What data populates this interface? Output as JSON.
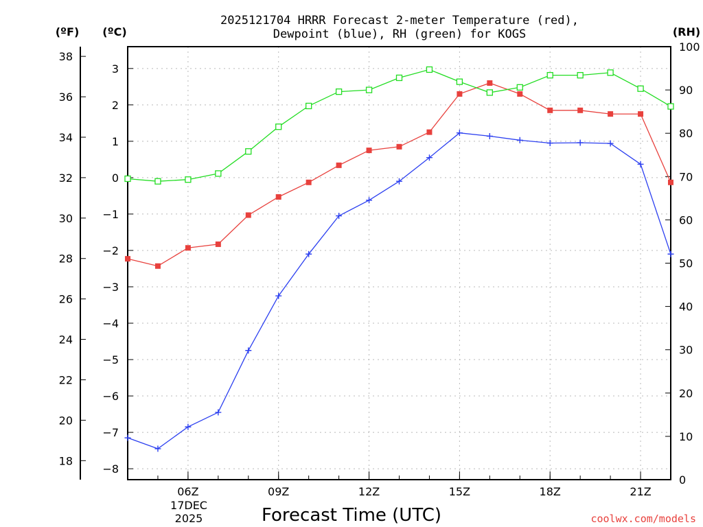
{
  "chart_data": {
    "type": "line",
    "title_line1": "2025121704 HRRR Forecast 2-meter Temperature (red),",
    "title_line2": "Dewpoint (blue), RH (green) for KOGS",
    "xlabel": "Forecast Time (UTC)",
    "date_line1": "17DEC",
    "date_line2": "2025",
    "credit": "coolwx.com/models",
    "unit_f": "(ºF)",
    "unit_c": "(ºC)",
    "unit_rh": "(RH)",
    "x_hours": [
      4,
      5,
      6,
      7,
      8,
      9,
      10,
      11,
      12,
      13,
      14,
      15,
      16,
      17,
      18,
      19,
      20,
      21,
      22
    ],
    "x_range": [
      4,
      22
    ],
    "x_ticks": [
      6,
      9,
      12,
      15,
      18,
      21
    ],
    "x_tick_labels": [
      "06Z",
      "09Z",
      "12Z",
      "15Z",
      "18Z",
      "21Z"
    ],
    "y_celsius_range": [
      -8.3,
      3.6
    ],
    "y_celsius_ticks": [
      -8,
      -7,
      -6,
      -5,
      -4,
      -3,
      -2,
      -1,
      0,
      1,
      2,
      3
    ],
    "y_celsius_tick_labels": [
      "−8",
      "−7",
      "−6",
      "−5",
      "−4",
      "−3",
      "−2",
      "−1",
      "0",
      "1",
      "2",
      "3"
    ],
    "y_fahrenheit_ticks": [
      18,
      20,
      22,
      24,
      26,
      28,
      30,
      32,
      34,
      36,
      38
    ],
    "y_rh_range": [
      0,
      100
    ],
    "y_rh_ticks": [
      0,
      10,
      20,
      30,
      40,
      50,
      60,
      70,
      80,
      90,
      100
    ],
    "grid": true,
    "series": [
      {
        "name": "Temperature",
        "units": "C",
        "color": "#e8413d",
        "marker": "filled-square",
        "values": [
          -2.23,
          -2.43,
          -1.93,
          -1.83,
          -1.03,
          -0.53,
          -0.13,
          0.34,
          0.75,
          0.85,
          1.25,
          2.3,
          2.6,
          2.3,
          1.85,
          1.85,
          1.75,
          1.75,
          -0.13
        ]
      },
      {
        "name": "Dewpoint",
        "units": "C",
        "color": "#2b3ff0",
        "marker": "plus",
        "values": [
          -7.15,
          -7.45,
          -6.85,
          -6.45,
          -4.75,
          -3.25,
          -2.1,
          -1.05,
          -0.62,
          -0.1,
          0.55,
          1.23,
          1.14,
          1.03,
          0.95,
          0.96,
          0.94,
          0.37,
          -2.1
        ]
      },
      {
        "name": "RH",
        "units": "%",
        "color": "#22dd22",
        "marker": "open-square",
        "values": [
          69.5,
          68.9,
          69.3,
          70.7,
          75.8,
          81.5,
          86.3,
          89.6,
          90.0,
          92.8,
          94.7,
          91.9,
          89.4,
          90.6,
          93.4,
          93.4,
          94.0,
          90.3,
          86.2
        ]
      }
    ]
  }
}
